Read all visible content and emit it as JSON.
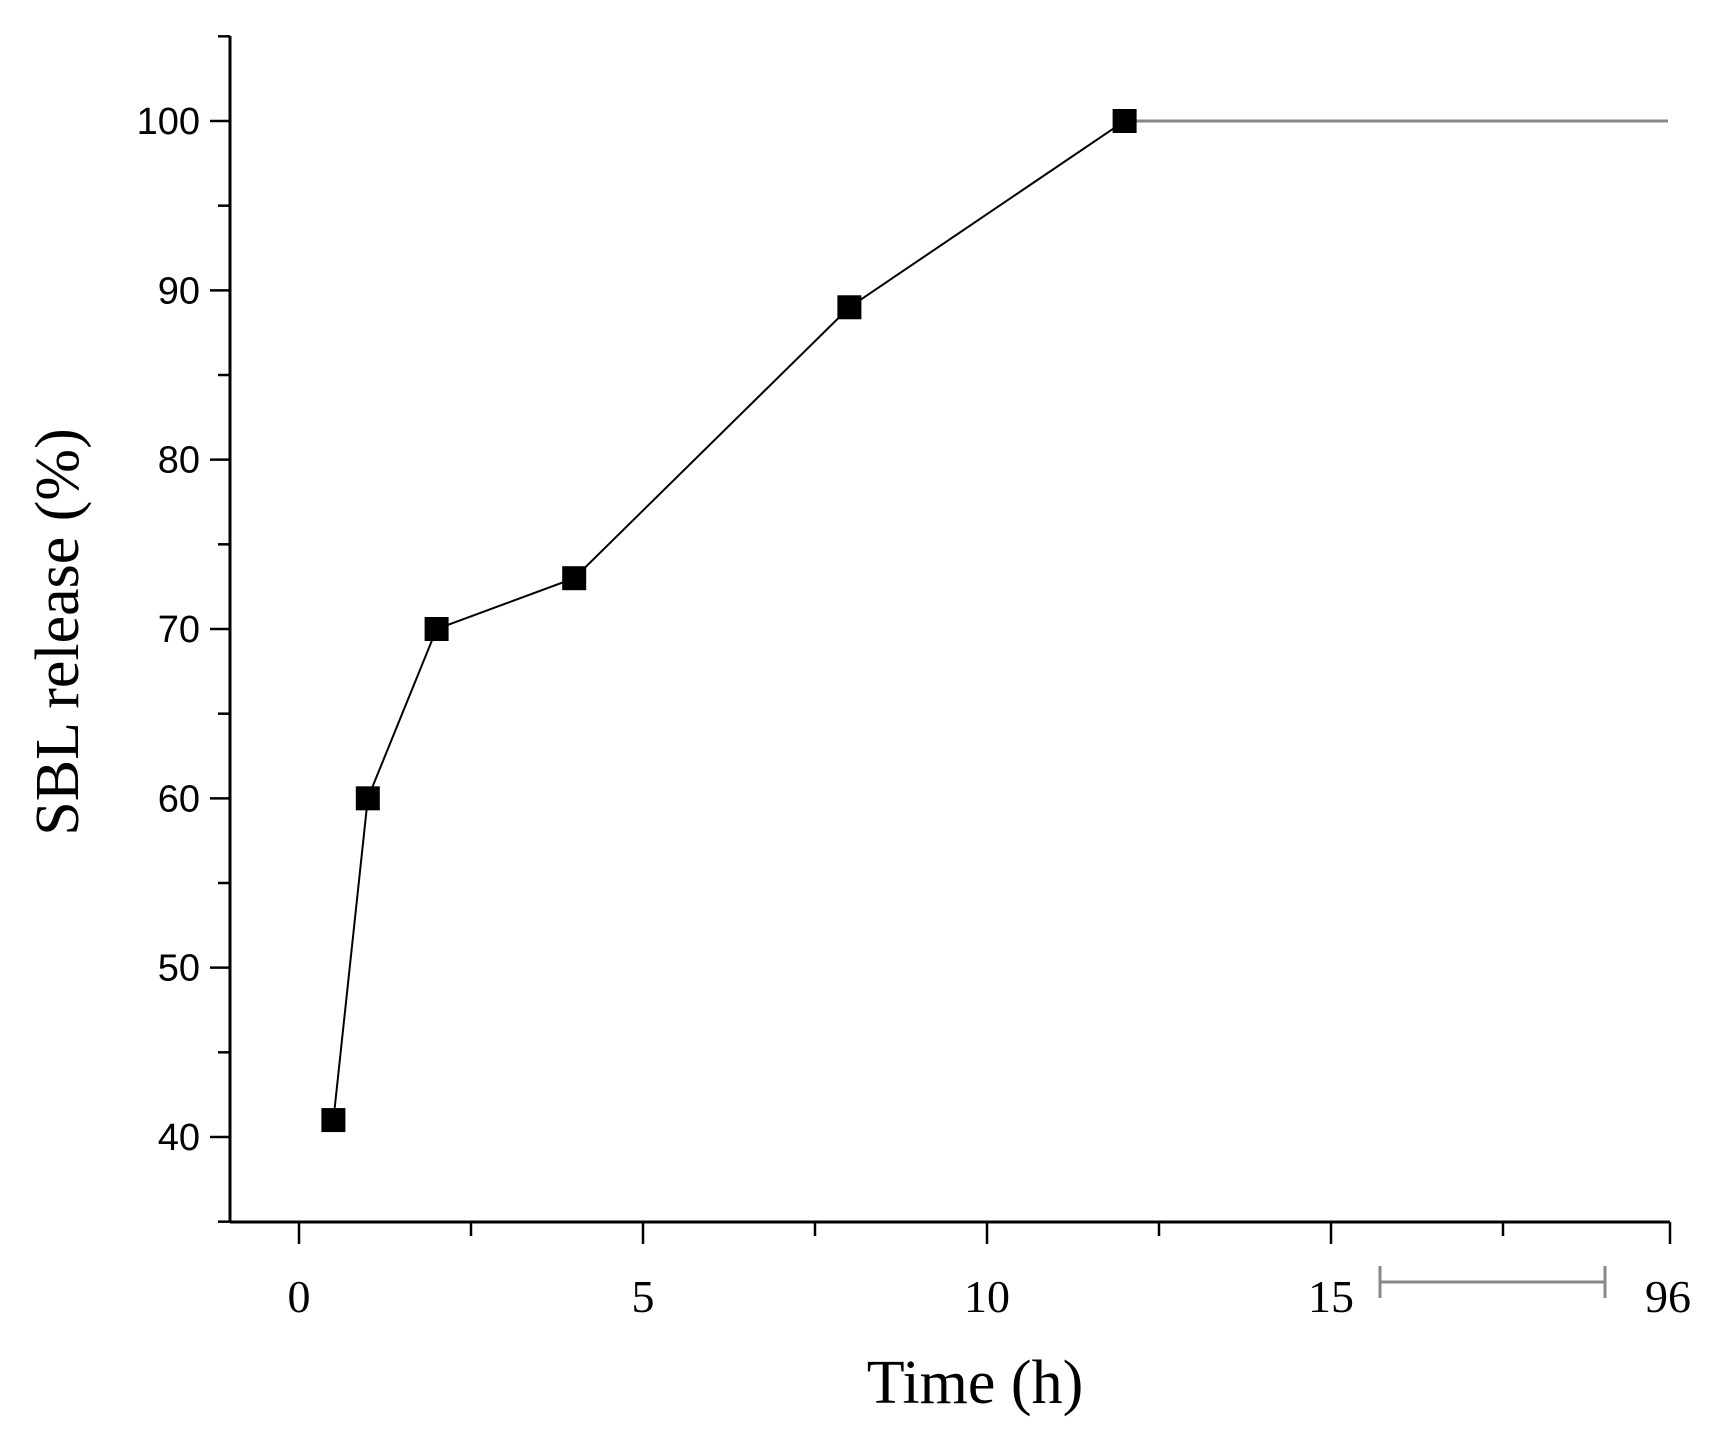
{
  "chart_data": {
    "type": "line",
    "xlabel": "Time (h)",
    "ylabel": "SBL release (%)",
    "xlim": [
      -1,
      20
    ],
    "ylim": [
      35,
      105
    ],
    "x_ticks": [
      "0",
      "5",
      "10",
      "15"
    ],
    "x_break_label": "96",
    "y_ticks": [
      "40",
      "50",
      "60",
      "70",
      "80",
      "90",
      "100"
    ],
    "grid": false,
    "legend": "none",
    "line_color": "#000000",
    "tail_line_color": "#888888",
    "marker": "square",
    "series": [
      {
        "x": [
          0.5,
          1,
          2,
          4,
          8,
          12
        ],
        "y": [
          41,
          60,
          70,
          73,
          89,
          100
        ]
      }
    ],
    "tail": {
      "from_x": 12,
      "to_x": 96,
      "y": 100
    }
  }
}
